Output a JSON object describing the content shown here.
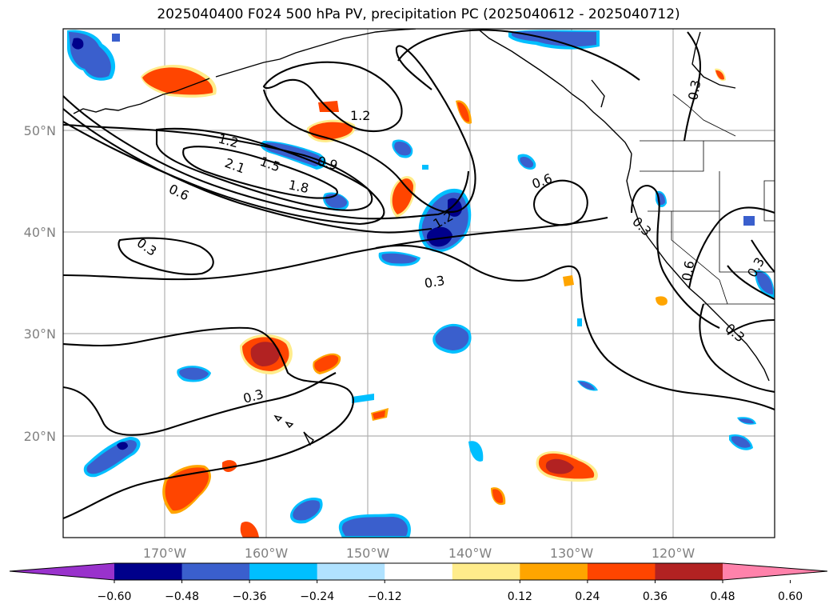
{
  "title": "2025040400 F024 500 hPa PV, precipitation PC (2025040612 - 2025040712)",
  "lat_labels": [
    "50°N",
    "40°N",
    "30°N",
    "20°N"
  ],
  "lon_labels": [
    "170°W",
    "160°W",
    "150°W",
    "140°W",
    "130°W",
    "120°W"
  ],
  "contour_labels": [
    "1.2",
    "1.2",
    "2.1",
    "1.5",
    "1.8",
    "0.9",
    "0.6",
    "0.3",
    "1.2",
    "0.6",
    "0.3",
    "0.3",
    "0.3",
    "0.6",
    "0.3",
    "0.3",
    "0.3"
  ],
  "colorbar": {
    "ticks": [
      "−0.60",
      "−0.48",
      "−0.36",
      "−0.24",
      "−0.12",
      "0.12",
      "0.24",
      "0.36",
      "0.48",
      "0.60"
    ],
    "colors": [
      "#9932cc",
      "#00008b",
      "#3a5fcd",
      "#00bfff",
      "#b0e2ff",
      "#ffffff",
      "#ffec8b",
      "#ffa500",
      "#ff4500",
      "#b22222",
      "#ff82ab"
    ]
  }
}
